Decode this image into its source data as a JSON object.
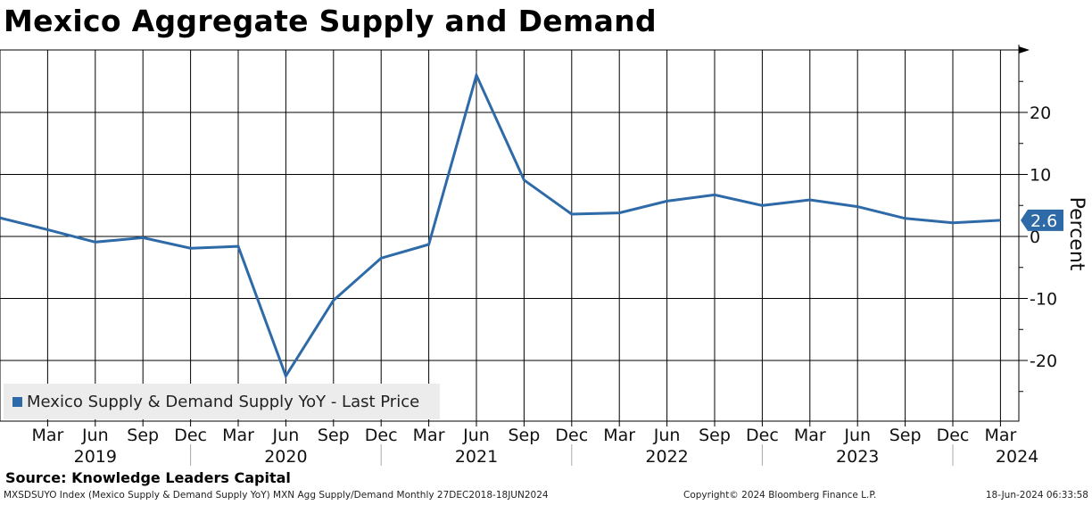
{
  "title": "Mexico Aggregate Supply and Demand",
  "source": "Source: Knowledge Leaders Capital",
  "footer": {
    "left": "MXSDSUYO Index (Mexico Supply & Demand Supply YoY) MXN Agg Supply/Demand  Monthly 27DEC2018-18JUN2024",
    "center": "Copyright© 2024 Bloomberg Finance L.P.",
    "right": "18-Jun-2024 06:33:58"
  },
  "colors": {
    "series": "#2e6aa7",
    "grid": "#000000",
    "legend_bg": "#ececec"
  },
  "chart_data": {
    "type": "line",
    "title": "Mexico Aggregate Supply and Demand",
    "ylabel": "Percent",
    "xlabel": "",
    "ylim": [
      -30,
      30
    ],
    "yticks": [
      -20,
      -10,
      0,
      10,
      20
    ],
    "ytick_labels": [
      "-20",
      "-10",
      "0",
      "10",
      "20"
    ],
    "grid": true,
    "legend_position": "bottom-left",
    "month_labels": [
      "Mar",
      "Jun",
      "Sep",
      "Dec",
      "Mar",
      "Jun",
      "Sep",
      "Dec",
      "Mar",
      "Jun",
      "Sep",
      "Dec",
      "Mar",
      "Jun",
      "Sep",
      "Dec",
      "Mar",
      "Jun",
      "Sep",
      "Dec",
      "Mar"
    ],
    "year_labels": [
      "2019",
      "2020",
      "2021",
      "2022",
      "2023",
      "2024"
    ],
    "series": [
      {
        "name": "Mexico Supply & Demand Supply YoY - Last Price",
        "x": [
          "Dec 2018",
          "Mar 2019",
          "Jun 2019",
          "Sep 2019",
          "Dec 2019",
          "Mar 2020",
          "Jun 2020",
          "Sep 2020",
          "Dec 2020",
          "Mar 2021",
          "Jun 2021",
          "Sep 2021",
          "Dec 2021",
          "Mar 2022",
          "Jun 2022",
          "Sep 2022",
          "Dec 2022",
          "Mar 2023",
          "Jun 2023",
          "Sep 2023",
          "Dec 2023",
          "Mar 2024"
        ],
        "values": [
          3.0,
          1.1,
          -0.9,
          -0.2,
          -1.9,
          -1.6,
          -22.5,
          -10.3,
          -3.5,
          -1.3,
          26.0,
          9.1,
          3.6,
          3.8,
          5.7,
          6.7,
          5.0,
          5.9,
          4.8,
          2.9,
          2.2,
          2.6
        ]
      }
    ],
    "last_value_label": "2.6"
  }
}
